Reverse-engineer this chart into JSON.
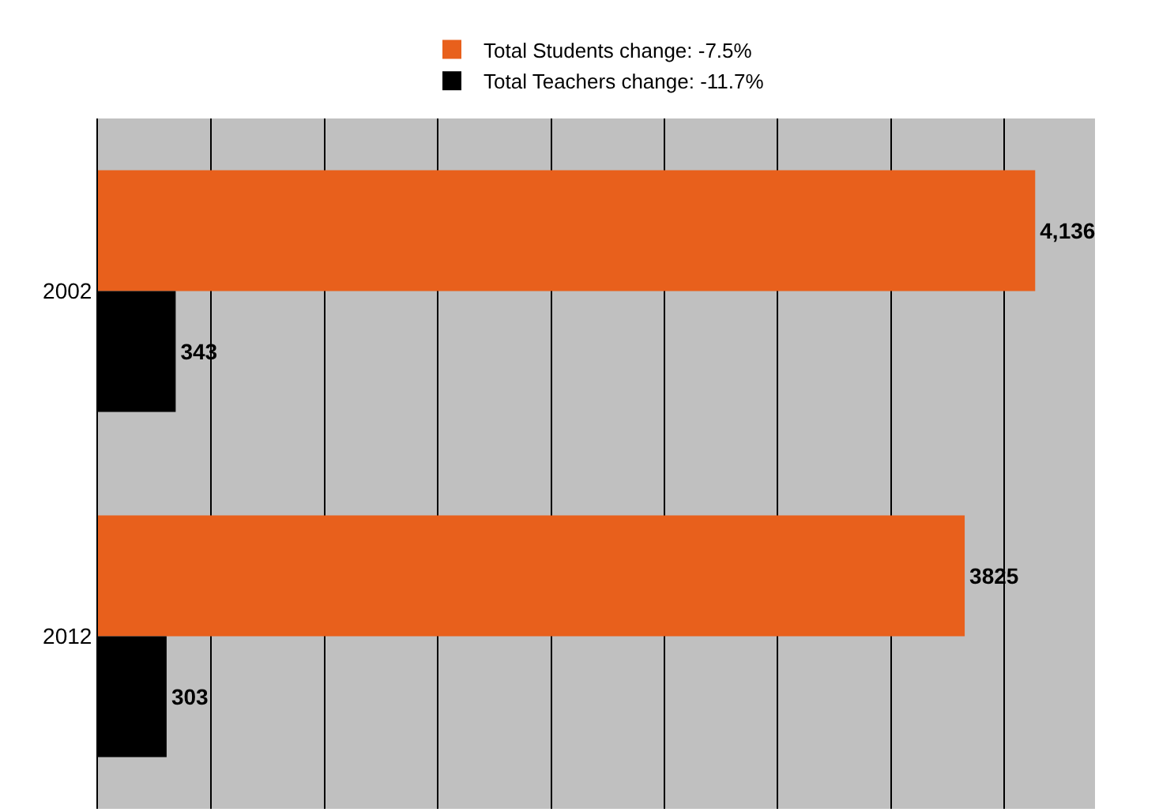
{
  "chart_data": {
    "type": "bar",
    "orientation": "horizontal",
    "categories": [
      "2002",
      "2012"
    ],
    "series": [
      {
        "name": "Total Students change: -7.5%",
        "color": "#e8601c",
        "values": [
          4136,
          3825
        ],
        "value_labels": [
          "4,136",
          "3825"
        ]
      },
      {
        "name": "Total Teachers change: -11.7%",
        "color": "#000000",
        "values": [
          343,
          303
        ],
        "value_labels": [
          "343",
          "303"
        ]
      }
    ],
    "xlim": [
      0,
      4400
    ],
    "xticks": [
      {
        "value": 0,
        "label": null
      },
      {
        "value": 500,
        "label": null
      },
      {
        "value": 1000,
        "label": null
      },
      {
        "value": 1500,
        "label": null
      },
      {
        "value": 2000,
        "label": null
      },
      {
        "value": 2500,
        "label": null
      },
      {
        "value": 3000,
        "label": null
      },
      {
        "value": 3500,
        "label": null
      },
      {
        "value": 4000,
        "label": null
      }
    ],
    "grid": "x",
    "legend": "top",
    "tick_labels": "y"
  }
}
